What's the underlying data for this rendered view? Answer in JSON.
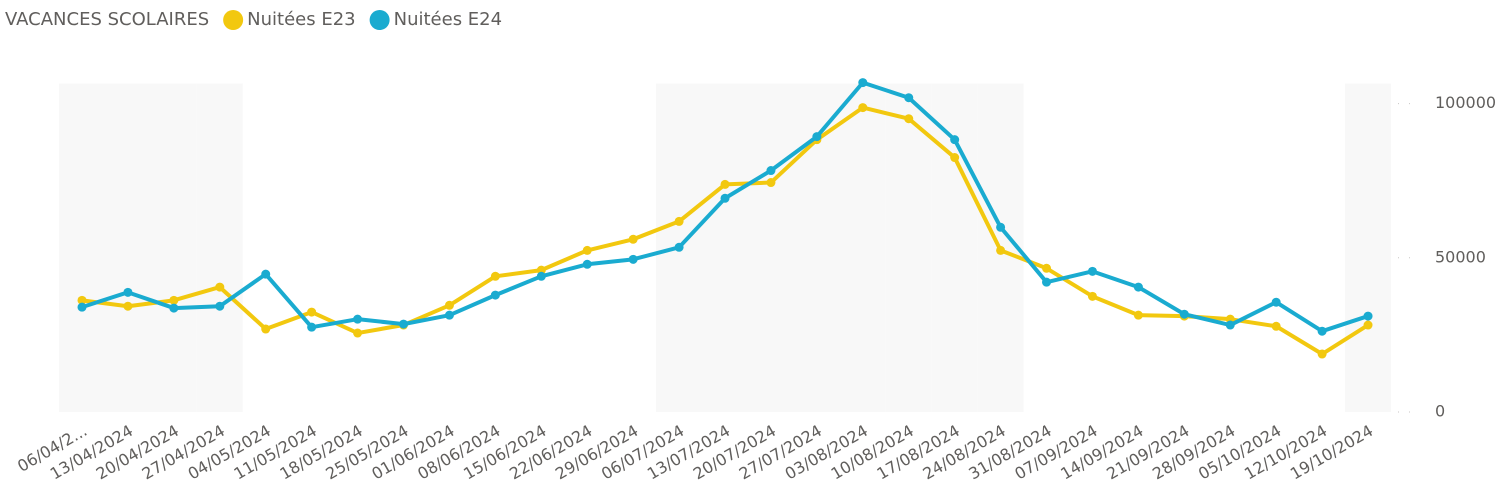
{
  "chart_data": {
    "type": "line",
    "categories": [
      "06/04/2...",
      "13/04/2024",
      "20/04/2024",
      "27/04/2024",
      "04/05/2024",
      "11/05/2024",
      "18/05/2024",
      "25/05/2024",
      "01/06/2024",
      "08/06/2024",
      "15/06/2024",
      "22/06/2024",
      "29/06/2024",
      "06/07/2024",
      "13/07/2024",
      "20/07/2024",
      "27/07/2024",
      "03/08/2024",
      "10/08/2024",
      "17/08/2024",
      "24/08/2024",
      "31/08/2024",
      "07/09/2024",
      "14/09/2024",
      "21/09/2024",
      "28/09/2024",
      "05/10/2024",
      "12/10/2024",
      "19/10/2024"
    ],
    "series": [
      {
        "name": "VACANCES SCOLAIRES",
        "type": "bar",
        "color": "#f8f8f8",
        "values": [
          106500,
          106500,
          106500,
          106500,
          null,
          null,
          null,
          null,
          null,
          null,
          null,
          null,
          null,
          106500,
          106500,
          106500,
          106500,
          106500,
          106500,
          106500,
          106500,
          null,
          null,
          null,
          null,
          null,
          null,
          null,
          106500
        ]
      },
      {
        "name": "Nuitées E23",
        "type": "line",
        "color": "#f2c80f",
        "values": [
          36200,
          34300,
          36200,
          40500,
          26900,
          32400,
          25600,
          28200,
          34600,
          44000,
          46000,
          52400,
          56000,
          61800,
          73800,
          74400,
          88300,
          98700,
          95100,
          82500,
          52400,
          46600,
          37500,
          31400,
          31100,
          30100,
          27800,
          18800,
          28200
        ]
      },
      {
        "name": "Nuitées E24",
        "type": "line",
        "color": "#1aabd0",
        "values": [
          34000,
          38800,
          33700,
          34300,
          44700,
          27500,
          30100,
          28500,
          31400,
          37900,
          44000,
          47900,
          49500,
          53400,
          69300,
          78300,
          89300,
          106800,
          101900,
          88300,
          59900,
          42100,
          45600,
          40500,
          31700,
          28200,
          35600,
          26200,
          31100
        ]
      }
    ],
    "ylim": [
      0,
      107000
    ],
    "yticks": [
      0,
      50000,
      100000
    ]
  }
}
